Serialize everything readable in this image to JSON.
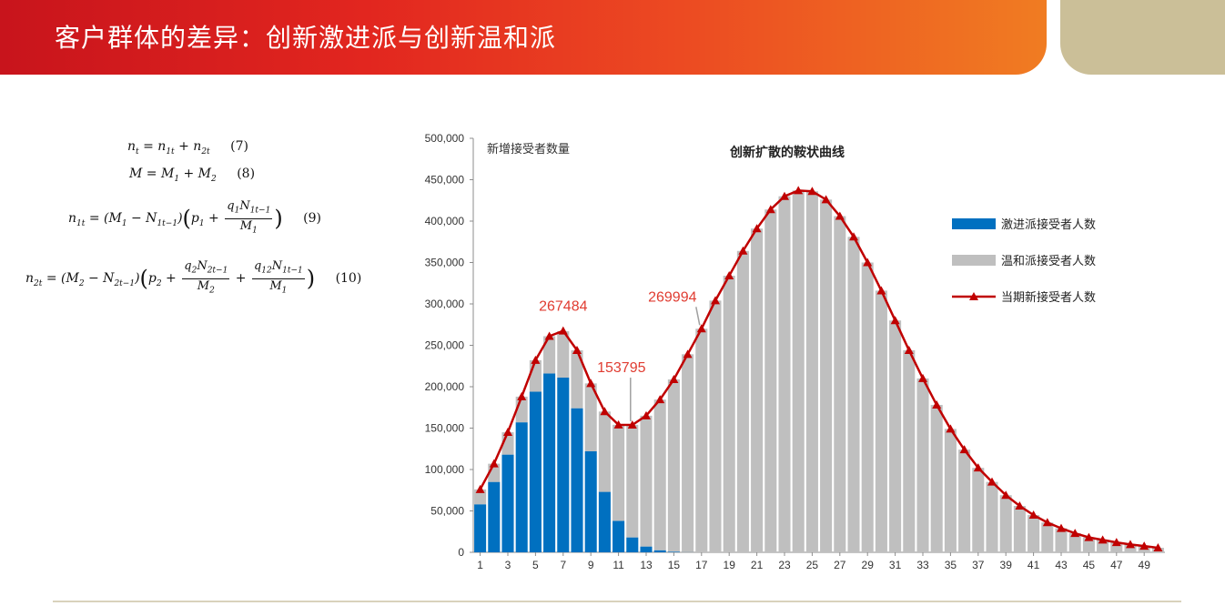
{
  "header": {
    "title": "客户群体的差异：创新激进派与创新温和派"
  },
  "formulas": {
    "eq7": {
      "number": "(7)"
    },
    "eq8": {
      "number": "(8)"
    },
    "eq9": {
      "number": "(9)"
    },
    "eq10": {
      "number": "(10)"
    }
  },
  "colors": {
    "aggressive": "#0070c0",
    "moderate": "#bfbfbf",
    "line": "#c00000",
    "header_start": "#c8141c",
    "header_end": "#f07c22",
    "tab": "#cbbf98"
  },
  "chart_data": {
    "type": "bar",
    "title": "创新扩散的鞍状曲线",
    "ylabel": "新增接受者数量",
    "ylim": [
      0,
      500000
    ],
    "yticks": [
      "0",
      "50,000",
      "100,000",
      "150,000",
      "200,000",
      "250,000",
      "300,000",
      "350,000",
      "400,000",
      "450,000",
      "500,000"
    ],
    "categories": [
      1,
      2,
      3,
      4,
      5,
      6,
      7,
      8,
      9,
      10,
      11,
      12,
      13,
      14,
      15,
      16,
      17,
      18,
      19,
      20,
      21,
      22,
      23,
      24,
      25,
      26,
      27,
      28,
      29,
      30,
      31,
      32,
      33,
      34,
      35,
      36,
      37,
      38,
      39,
      40,
      41,
      42,
      43,
      44,
      45,
      46,
      47,
      48,
      49,
      50
    ],
    "xtick_labels": [
      "1",
      "3",
      "5",
      "7",
      "9",
      "11",
      "13",
      "15",
      "17",
      "19",
      "21",
      "23",
      "25",
      "27",
      "29",
      "31",
      "33",
      "35",
      "37",
      "39",
      "41",
      "43",
      "45",
      "47",
      "49"
    ],
    "stacked": true,
    "series": [
      {
        "name": "激进派接受者人数",
        "type": "bar",
        "values": [
          58000,
          85000,
          118000,
          157000,
          194000,
          216000,
          211000,
          174000,
          122000,
          73000,
          38000,
          18000,
          7000,
          2500,
          800,
          200,
          0,
          0,
          0,
          0,
          0,
          0,
          0,
          0,
          0,
          0,
          0,
          0,
          0,
          0,
          0,
          0,
          0,
          0,
          0,
          0,
          0,
          0,
          0,
          0,
          0,
          0,
          0,
          0,
          0,
          0,
          0,
          0,
          0,
          0
        ]
      },
      {
        "name": "温和派接受者人数",
        "type": "bar",
        "values": [
          18000,
          22000,
          27000,
          31000,
          38000,
          45000,
          56000,
          70000,
          82000,
          97000,
          116000,
          136000,
          158000,
          182000,
          208000,
          239000,
          270000,
          304000,
          334000,
          364000,
          391000,
          414000,
          430000,
          437000,
          436000,
          426000,
          406000,
          381000,
          350000,
          316000,
          280000,
          244000,
          210000,
          178000,
          149000,
          124000,
          102000,
          85000,
          69000,
          56000,
          45000,
          36000,
          29000,
          23000,
          18000,
          15000,
          12000,
          9500,
          7500,
          5500
        ]
      },
      {
        "name": "当期新接受者人数",
        "type": "line",
        "values": [
          76000,
          107000,
          145000,
          188000,
          232000,
          261000,
          267484,
          244000,
          204000,
          170000,
          154000,
          153795,
          165000,
          184500,
          208800,
          239200,
          269994,
          304000,
          334000,
          364000,
          391000,
          414000,
          430000,
          437000,
          436000,
          426000,
          406000,
          381000,
          350000,
          316000,
          280000,
          244000,
          210000,
          178000,
          149000,
          124000,
          102000,
          85000,
          69000,
          56000,
          45000,
          36000,
          29000,
          23000,
          18000,
          15000,
          12000,
          9500,
          7500,
          5500
        ]
      }
    ],
    "annotations": [
      {
        "text": "267484",
        "x": 7,
        "value": 267484
      },
      {
        "text": "153795",
        "x": 12,
        "value": 153795
      },
      {
        "text": "269994",
        "x": 17,
        "value": 269994
      }
    ],
    "legend": {
      "position": "right"
    },
    "grid": false
  }
}
